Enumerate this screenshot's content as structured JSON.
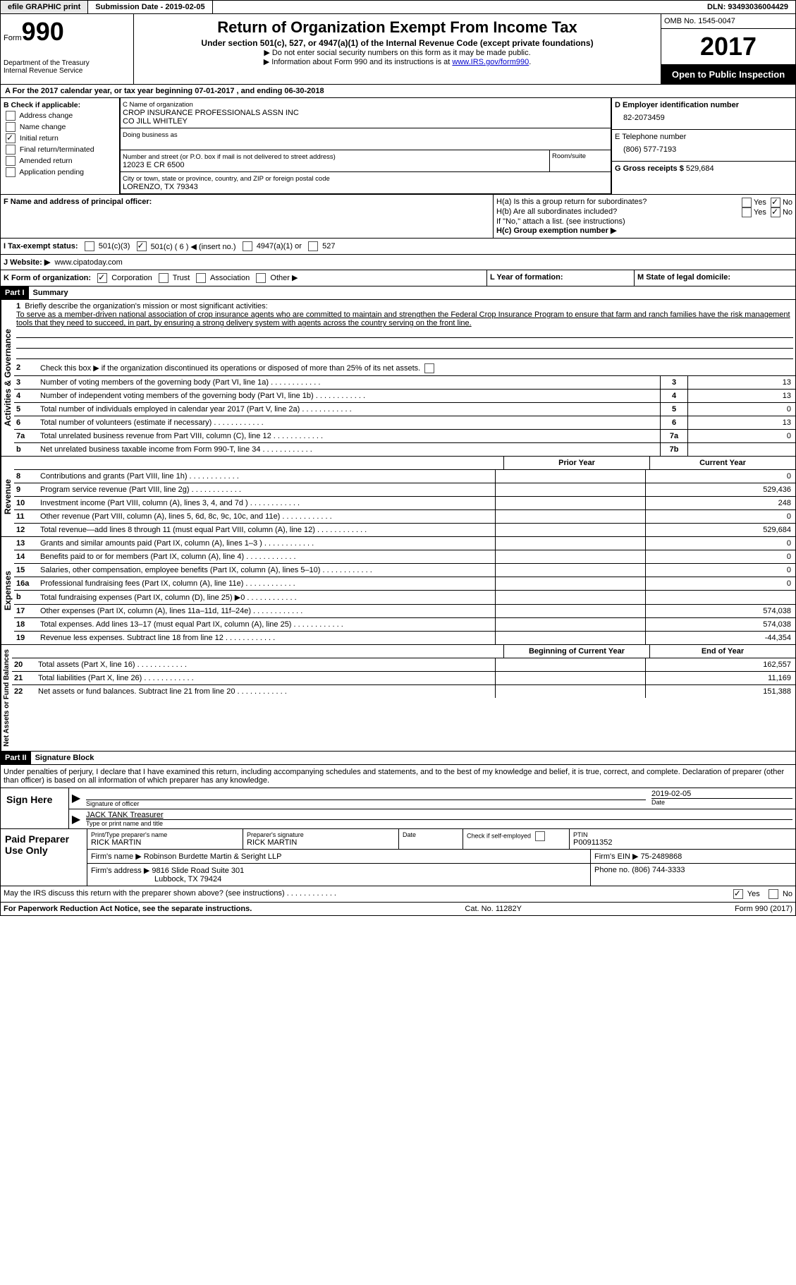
{
  "topbar": {
    "efile_btn": "efile GRAPHIC print",
    "submission_label": "Submission Date - 2019-02-05",
    "dln_label": "DLN: 93493036004429"
  },
  "header": {
    "form_label": "Form",
    "form_number": "990",
    "dept1": "Department of the Treasury",
    "dept2": "Internal Revenue Service",
    "title": "Return of Organization Exempt From Income Tax",
    "subtitle": "Under section 501(c), 527, or 4947(a)(1) of the Internal Revenue Code (except private foundations)",
    "note1": "▶ Do not enter social security numbers on this form as it may be made public.",
    "note2_pre": "▶ Information about Form 990 and its instructions is at ",
    "note2_link": "www.IRS.gov/form990",
    "omb": "OMB No. 1545-0047",
    "year": "2017",
    "inspection": "Open to Public Inspection"
  },
  "rowA": "A  For the 2017 calendar year, or tax year beginning 07-01-2017  , and ending 06-30-2018",
  "boxB": {
    "title": "B Check if applicable:",
    "items": [
      "Address change",
      "Name change",
      "Initial return",
      "Final return/terminated",
      "Amended return",
      "Application pending"
    ],
    "checked": "Initial return"
  },
  "boxC": {
    "name_label": "C Name of organization",
    "name1": "CROP INSURANCE PROFESSIONALS ASSN INC",
    "name2": "CO JILL WHITLEY",
    "dba_label": "Doing business as",
    "street_label": "Number and street (or P.O. box if mail is not delivered to street address)",
    "street": "12023 E CR 6500",
    "room_label": "Room/suite",
    "city_label": "City or town, state or province, country, and ZIP or foreign postal code",
    "city": "LORENZO, TX  79343"
  },
  "boxD": {
    "label": "D Employer identification number",
    "value": "82-2073459"
  },
  "boxE": {
    "label": "E Telephone number",
    "value": "(806) 577-7193"
  },
  "boxG": {
    "label": "G Gross receipts $",
    "value": "529,684"
  },
  "boxF": "F  Name and address of principal officer:",
  "boxH": {
    "a": "H(a)  Is this a group return for subordinates?",
    "b": "H(b)  Are all subordinates included?",
    "b_note": "If \"No,\" attach a list. (see instructions)",
    "c": "H(c)  Group exemption number ▶",
    "yes": "Yes",
    "no": "No"
  },
  "boxI": {
    "label": "I  Tax-exempt status:",
    "opt1": "501(c)(3)",
    "opt2": "501(c) ( 6 ) ◀ (insert no.)",
    "opt3": "4947(a)(1) or",
    "opt4": "527"
  },
  "boxJ": {
    "label": "J  Website: ▶",
    "value": "www.cipatoday.com"
  },
  "boxK": {
    "label": "K Form of organization:",
    "opts": [
      "Corporation",
      "Trust",
      "Association",
      "Other ▶"
    ]
  },
  "boxL": "L Year of formation:",
  "boxM": "M State of legal domicile:",
  "part1": {
    "header": "Part I",
    "title": "Summary",
    "vlabels": {
      "ag": "Activities & Governance",
      "rev": "Revenue",
      "exp": "Expenses",
      "nab": "Net Assets or Fund Balances"
    },
    "line1_label": "Briefly describe the organization's mission or most significant activities:",
    "mission": "To serve as a member-driven national association of crop insurance agents who are committed to maintain and strengthen the Federal Crop Insurance Program to ensure that farm and ranch families have the risk management tools that they need to succeed, in part, by ensuring a strong delivery system with agents across the country serving on the front line.",
    "line2": "Check this box ▶      if the organization discontinued its operations or disposed of more than 25% of its net assets.",
    "lines_ag": [
      {
        "n": "3",
        "d": "Number of voting members of the governing body (Part VI, line 1a)",
        "b": "3",
        "v": "13"
      },
      {
        "n": "4",
        "d": "Number of independent voting members of the governing body (Part VI, line 1b)",
        "b": "4",
        "v": "13"
      },
      {
        "n": "5",
        "d": "Total number of individuals employed in calendar year 2017 (Part V, line 2a)",
        "b": "5",
        "v": "0"
      },
      {
        "n": "6",
        "d": "Total number of volunteers (estimate if necessary)",
        "b": "6",
        "v": "13"
      },
      {
        "n": "7a",
        "d": "Total unrelated business revenue from Part VIII, column (C), line 12",
        "b": "7a",
        "v": "0"
      },
      {
        "n": "b",
        "d": "Net unrelated business taxable income from Form 990-T, line 34",
        "b": "7b",
        "v": ""
      }
    ],
    "col_prior": "Prior Year",
    "col_current": "Current Year",
    "lines_rev": [
      {
        "n": "8",
        "d": "Contributions and grants (Part VIII, line 1h)",
        "v1": "",
        "v2": "0"
      },
      {
        "n": "9",
        "d": "Program service revenue (Part VIII, line 2g)",
        "v1": "",
        "v2": "529,436"
      },
      {
        "n": "10",
        "d": "Investment income (Part VIII, column (A), lines 3, 4, and 7d )",
        "v1": "",
        "v2": "248"
      },
      {
        "n": "11",
        "d": "Other revenue (Part VIII, column (A), lines 5, 6d, 8c, 9c, 10c, and 11e)",
        "v1": "",
        "v2": "0"
      },
      {
        "n": "12",
        "d": "Total revenue—add lines 8 through 11 (must equal Part VIII, column (A), line 12)",
        "v1": "",
        "v2": "529,684"
      }
    ],
    "lines_exp": [
      {
        "n": "13",
        "d": "Grants and similar amounts paid (Part IX, column (A), lines 1–3 )",
        "v1": "",
        "v2": "0"
      },
      {
        "n": "14",
        "d": "Benefits paid to or for members (Part IX, column (A), line 4)",
        "v1": "",
        "v2": "0"
      },
      {
        "n": "15",
        "d": "Salaries, other compensation, employee benefits (Part IX, column (A), lines 5–10)",
        "v1": "",
        "v2": "0"
      },
      {
        "n": "16a",
        "d": "Professional fundraising fees (Part IX, column (A), line 11e)",
        "v1": "",
        "v2": "0"
      },
      {
        "n": "b",
        "d": "Total fundraising expenses (Part IX, column (D), line 25) ▶0",
        "v1": "shade",
        "v2": "shade"
      },
      {
        "n": "17",
        "d": "Other expenses (Part IX, column (A), lines 11a–11d, 11f–24e)",
        "v1": "",
        "v2": "574,038"
      },
      {
        "n": "18",
        "d": "Total expenses. Add lines 13–17 (must equal Part IX, column (A), line 25)",
        "v1": "",
        "v2": "574,038"
      },
      {
        "n": "19",
        "d": "Revenue less expenses. Subtract line 18 from line 12",
        "v1": "",
        "v2": "-44,354"
      }
    ],
    "col_begin": "Beginning of Current Year",
    "col_end": "End of Year",
    "lines_nab": [
      {
        "n": "20",
        "d": "Total assets (Part X, line 16)",
        "v1": "",
        "v2": "162,557"
      },
      {
        "n": "21",
        "d": "Total liabilities (Part X, line 26)",
        "v1": "",
        "v2": "11,169"
      },
      {
        "n": "22",
        "d": "Net assets or fund balances. Subtract line 21 from line 20",
        "v1": "",
        "v2": "151,388"
      }
    ]
  },
  "part2": {
    "header": "Part II",
    "title": "Signature Block",
    "declaration": "Under penalties of perjury, I declare that I have examined this return, including accompanying schedules and statements, and to the best of my knowledge and belief, it is true, correct, and complete. Declaration of preparer (other than officer) is based on all information of which preparer has any knowledge.",
    "sign_here": "Sign Here",
    "sig_officer_label": "Signature of officer",
    "date_label": "Date",
    "date_value": "2019-02-05",
    "typed_name": "JACK TANK Treasurer",
    "typed_label": "Type or print name and title"
  },
  "preparer": {
    "label": "Paid Preparer Use Only",
    "print_name_label": "Print/Type preparer's name",
    "print_name": "RICK MARTIN",
    "sig_label": "Preparer's signature",
    "sig": "RICK MARTIN",
    "date_label": "Date",
    "check_label": "Check      if self-employed",
    "ptin_label": "PTIN",
    "ptin": "P00911352",
    "firm_name_label": "Firm's name    ▶",
    "firm_name": "Robinson Burdette Martin & Seright LLP",
    "firm_ein_label": "Firm's EIN ▶",
    "firm_ein": "75-2489868",
    "firm_addr_label": "Firm's address ▶",
    "firm_addr1": "9816 Slide Road Suite 301",
    "firm_addr2": "Lubbock, TX  79424",
    "phone_label": "Phone no.",
    "phone": "(806) 744-3333"
  },
  "discuss": {
    "q": "May the IRS discuss this return with the preparer shown above? (see instructions)",
    "yes": "Yes",
    "no": "No"
  },
  "footer": {
    "left": "For Paperwork Reduction Act Notice, see the separate instructions.",
    "center": "Cat. No. 11282Y",
    "right": "Form 990 (2017)"
  }
}
